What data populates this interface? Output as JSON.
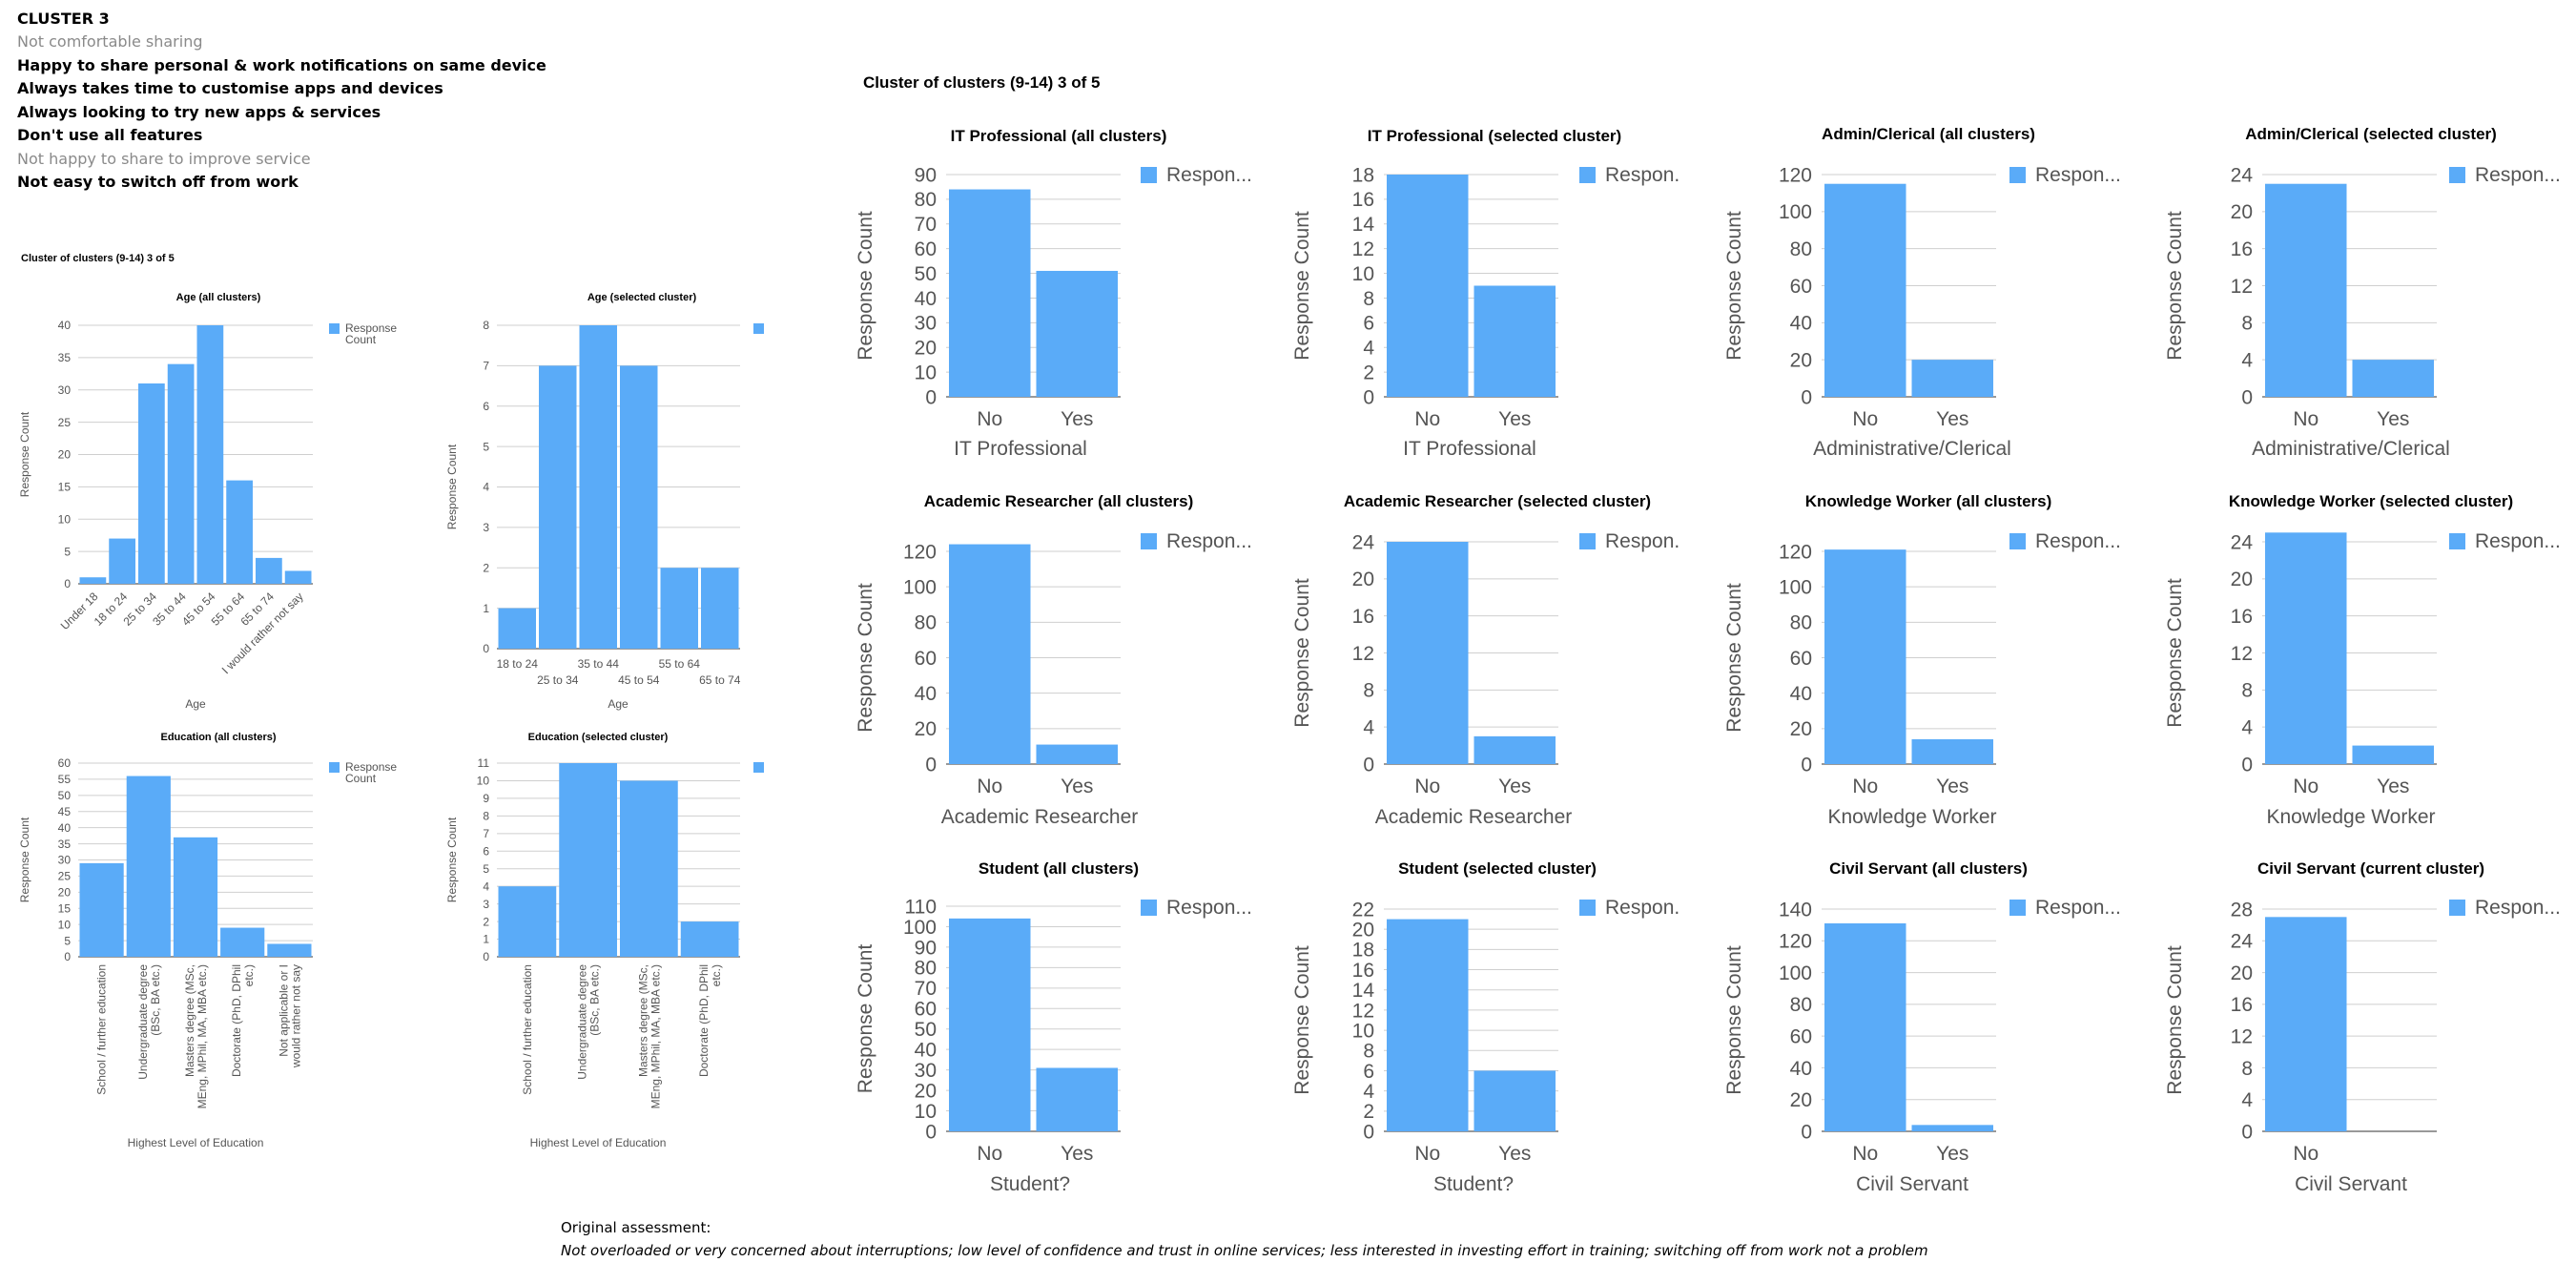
{
  "cluster_info": {
    "heading": "CLUSTER 3",
    "traits": [
      {
        "text": "Not comfortable sharing",
        "style": "grey"
      },
      {
        "text": "Happy to share personal & work notifications on same device",
        "style": "bold"
      },
      {
        "text": "Always takes time to customise apps and devices",
        "style": "bold"
      },
      {
        "text": "Always looking to try new apps & services",
        "style": "bold"
      },
      {
        "text": "Don't use all features",
        "style": "bold"
      },
      {
        "text": "Not happy to share to improve service",
        "style": "grey"
      },
      {
        "text": "Not easy to switch off from work",
        "style": "bold"
      }
    ]
  },
  "small_set_title": "Cluster of clusters (9-14) 3 of 5",
  "big_set_title": "Cluster of clusters (9-14) 3 of 5",
  "assessment": {
    "label": "Original assessment:",
    "text": "Not overloaded or very concerned about interruptions; low level of confidence and trust in online services; less interested in investing effort in training; switching off from work not a problem"
  },
  "colors": {
    "bar": "#5aabf8",
    "grid": "#cfcfcf",
    "axis_text": "#555555"
  },
  "chart_data": [
    {
      "type": "bar",
      "title": "Age (all clusters)",
      "xlabel": "Age",
      "ylabel": "Response Count",
      "legend": "Response Count",
      "legend_position": "right",
      "rotate": 45,
      "ylim": [
        0,
        40
      ],
      "yticks": [
        0,
        5,
        10,
        15,
        20,
        25,
        30,
        35,
        40
      ],
      "categories": [
        "Under 18",
        "18 to 24",
        "25 to 34",
        "35 to 44",
        "45 to 54",
        "55 to 64",
        "65 to 74",
        "I would rather not say"
      ],
      "values": [
        1,
        7,
        31,
        34,
        40,
        16,
        4,
        2
      ]
    },
    {
      "type": "bar",
      "title": "Age (selected cluster)",
      "xlabel": "Age",
      "ylabel": "Response Count",
      "legend": "",
      "legend_position": "right",
      "rotate": 0,
      "ylim": [
        0,
        8
      ],
      "yticks": [
        0,
        1,
        2,
        3,
        4,
        5,
        6,
        7,
        8
      ],
      "categories": [
        "18 to 24",
        "25 to 34",
        "35 to 44",
        "45 to 54",
        "55 to 64",
        "65 to 74"
      ],
      "values": [
        1,
        7,
        8,
        7,
        2,
        2
      ]
    },
    {
      "type": "bar",
      "title": "Education (all clusters)",
      "xlabel": "Highest Level of Education",
      "ylabel": "Response Count",
      "legend": "Response Count",
      "legend_position": "right",
      "rotate": -90,
      "ylim": [
        0,
        60
      ],
      "yticks": [
        0,
        5,
        10,
        15,
        20,
        25,
        30,
        35,
        40,
        45,
        50,
        55,
        60
      ],
      "categories": [
        "School / further education",
        "Undergraduate degree (BSc, BA etc.)",
        "Masters degree (MSc, MEng, MPhil, MA, MBA etc.)",
        "Doctorate (PhD, DPhil etc.)",
        "Not applicable or I would rather not say"
      ],
      "values": [
        29,
        56,
        37,
        9,
        4
      ]
    },
    {
      "type": "bar",
      "title": "Education (selected cluster)",
      "xlabel": "Highest Level of Education",
      "ylabel": "Response Count",
      "legend": "",
      "legend_position": "right",
      "rotate": -90,
      "ylim": [
        0,
        11
      ],
      "yticks": [
        0,
        1,
        2,
        3,
        4,
        5,
        6,
        7,
        8,
        9,
        10,
        11
      ],
      "categories": [
        "School / further education",
        "Undergraduate degree (BSc, BA etc.)",
        "Masters degree (MSc, MEng, MPhil, MA, MBA etc.)",
        "Doctorate (PhD, DPhil etc.)"
      ],
      "values": [
        4,
        11,
        10,
        2
      ]
    },
    {
      "type": "bar",
      "title": "IT Professional (all clusters)",
      "xlabel": "IT Professional",
      "ylabel": "Response Count",
      "legend": "Respon...",
      "legend_position": "right",
      "rotate": 0,
      "ylim": [
        0,
        90
      ],
      "yticks": [
        0,
        10,
        20,
        30,
        40,
        50,
        60,
        70,
        80,
        90
      ],
      "categories": [
        "No",
        "Yes"
      ],
      "values": [
        84,
        51
      ]
    },
    {
      "type": "bar",
      "title": "IT Professional (selected cluster)",
      "xlabel": "IT Professional",
      "ylabel": "Response Count",
      "legend": "Respon.",
      "legend_position": "right",
      "rotate": 0,
      "ylim": [
        0,
        18
      ],
      "yticks": [
        0,
        2,
        4,
        6,
        8,
        10,
        12,
        14,
        16,
        18
      ],
      "categories": [
        "No",
        "Yes"
      ],
      "values": [
        18,
        9
      ]
    },
    {
      "type": "bar",
      "title": "Admin/Clerical (all clusters)",
      "xlabel": "Administrative/Clerical",
      "ylabel": "Response Count",
      "legend": "Respon...",
      "legend_position": "right",
      "rotate": 0,
      "ylim": [
        0,
        120
      ],
      "yticks": [
        0,
        20,
        40,
        60,
        80,
        100,
        120
      ],
      "categories": [
        "No",
        "Yes"
      ],
      "values": [
        115,
        20
      ]
    },
    {
      "type": "bar",
      "title": "Admin/Clerical (selected cluster)",
      "xlabel": "Administrative/Clerical",
      "ylabel": "Response Count",
      "legend": "Respon...",
      "legend_position": "right",
      "rotate": 0,
      "ylim": [
        0,
        24
      ],
      "yticks": [
        0,
        4,
        8,
        12,
        16,
        20,
        24
      ],
      "categories": [
        "No",
        "Yes"
      ],
      "values": [
        23,
        4
      ]
    },
    {
      "type": "bar",
      "title": "Academic Researcher (all clusters)",
      "xlabel": "Academic Researcher",
      "ylabel": "Response Count",
      "legend": "Respon...",
      "legend_position": "right",
      "rotate": 0,
      "ylim": [
        0,
        120
      ],
      "yticks": [
        0,
        20,
        40,
        60,
        80,
        100,
        120
      ],
      "categories": [
        "No",
        "Yes"
      ],
      "values": [
        124,
        11
      ]
    },
    {
      "type": "bar",
      "title": "Academic Researcher (selected cluster)",
      "xlabel": "Academic Researcher",
      "ylabel": "Response Count",
      "legend": "Respon.",
      "legend_position": "right",
      "rotate": 0,
      "ylim": [
        0,
        24
      ],
      "yticks": [
        0,
        4,
        8,
        12,
        16,
        20,
        24
      ],
      "categories": [
        "No",
        "Yes"
      ],
      "values": [
        24,
        3
      ]
    },
    {
      "type": "bar",
      "title": "Knowledge Worker (all clusters)",
      "xlabel": "Knowledge Worker",
      "ylabel": "Response Count",
      "legend": "Respon...",
      "legend_position": "right",
      "rotate": 0,
      "ylim": [
        0,
        120
      ],
      "yticks": [
        0,
        20,
        40,
        60,
        80,
        100,
        120
      ],
      "categories": [
        "No",
        "Yes"
      ],
      "values": [
        121,
        14
      ]
    },
    {
      "type": "bar",
      "title": "Knowledge Worker (selected cluster)",
      "xlabel": "Knowledge Worker",
      "ylabel": "Response Count",
      "legend": "Respon...",
      "legend_position": "right",
      "rotate": 0,
      "ylim": [
        0,
        24
      ],
      "yticks": [
        0,
        4,
        8,
        12,
        16,
        20,
        24
      ],
      "categories": [
        "No",
        "Yes"
      ],
      "values": [
        25,
        2
      ]
    },
    {
      "type": "bar",
      "title": "Student (all clusters)",
      "xlabel": "Student?",
      "ylabel": "Response Count",
      "legend": "Respon...",
      "legend_position": "right",
      "rotate": 0,
      "ylim": [
        0,
        110
      ],
      "yticks": [
        0,
        10,
        20,
        30,
        40,
        50,
        60,
        70,
        80,
        90,
        100,
        110
      ],
      "categories": [
        "No",
        "Yes"
      ],
      "values": [
        104,
        31
      ]
    },
    {
      "type": "bar",
      "title": "Student (selected cluster)",
      "xlabel": "Student?",
      "ylabel": "Response Count",
      "legend": "Respon.",
      "legend_position": "right",
      "rotate": 0,
      "ylim": [
        0,
        22
      ],
      "yticks": [
        0,
        2,
        4,
        6,
        8,
        10,
        12,
        14,
        16,
        18,
        20,
        22
      ],
      "categories": [
        "No",
        "Yes"
      ],
      "values": [
        21,
        6
      ]
    },
    {
      "type": "bar",
      "title": "Civil Servant (all clusters)",
      "xlabel": "Civil Servant",
      "ylabel": "Response Count",
      "legend": "Respon...",
      "legend_position": "right",
      "rotate": 0,
      "ylim": [
        0,
        140
      ],
      "yticks": [
        0,
        20,
        40,
        60,
        80,
        100,
        120,
        140
      ],
      "categories": [
        "No",
        "Yes"
      ],
      "values": [
        131,
        4
      ]
    },
    {
      "type": "bar",
      "title": "Civil Servant (current cluster)",
      "xlabel": "Civil Servant",
      "ylabel": "Response Count",
      "legend": "Respon...",
      "legend_position": "right",
      "rotate": 0,
      "ylim": [
        0,
        28
      ],
      "yticks": [
        0,
        4,
        8,
        12,
        16,
        20,
        24,
        28
      ],
      "categories": [
        "No"
      ],
      "values": [
        27
      ]
    }
  ]
}
